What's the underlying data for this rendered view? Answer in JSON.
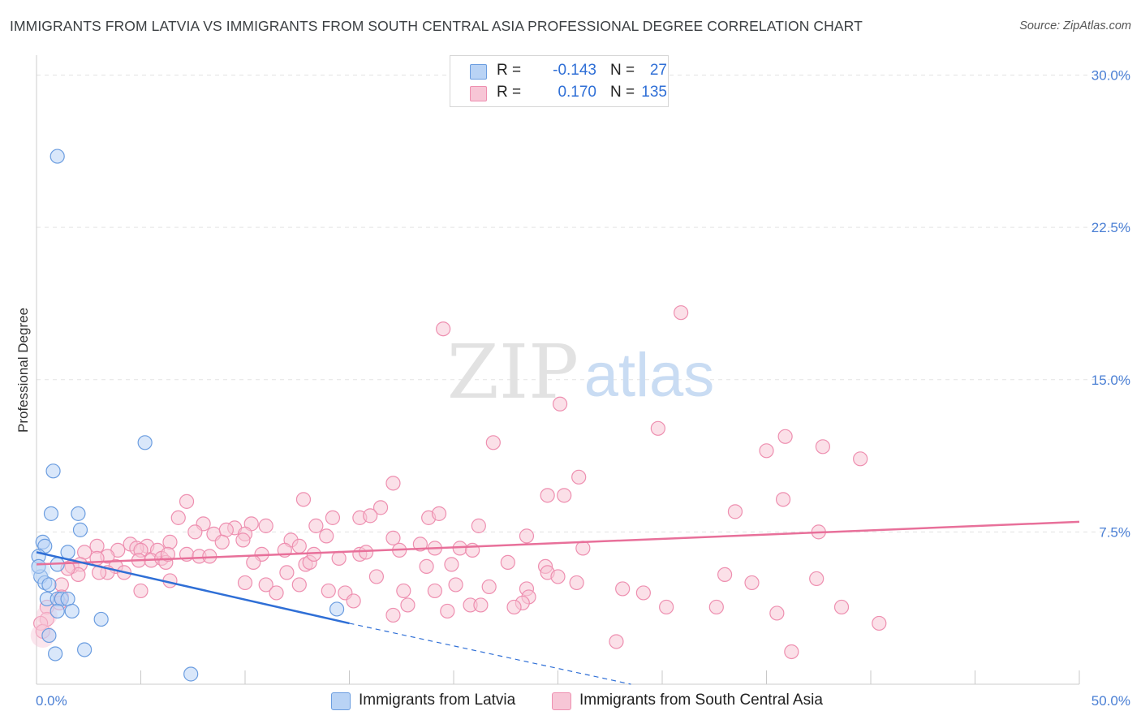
{
  "title": "IMMIGRANTS FROM LATVIA VS IMMIGRANTS FROM SOUTH CENTRAL ASIA PROFESSIONAL DEGREE CORRELATION CHART",
  "source": "Source: ZipAtlas.com",
  "watermark": {
    "zip": "ZIP",
    "atlas": "atlas"
  },
  "colors": {
    "latvia_fill": "#b9d3f5",
    "latvia_stroke": "#6b9de0",
    "latvia_line": "#2f6fd6",
    "sca_fill": "#f7c6d6",
    "sca_stroke": "#ee8fb0",
    "sca_line": "#e8709a",
    "tick_label": "#4a7fd4",
    "grid": "#e3e3e3"
  },
  "legend": {
    "rows": [
      {
        "r_label": "R =",
        "r_value": "-0.143",
        "n_label": "N =",
        "n_value": "27"
      },
      {
        "r_label": "R =",
        "r_value": "0.170",
        "n_label": "N =",
        "n_value": "135"
      }
    ]
  },
  "bottom_legend": [
    "Immigrants from Latvia",
    "Immigrants from South Central Asia"
  ],
  "chart_data": {
    "type": "scatter",
    "title": "IMMIGRANTS FROM LATVIA VS IMMIGRANTS FROM SOUTH CENTRAL ASIA PROFESSIONAL DEGREE CORRELATION CHART",
    "xlabel": "",
    "ylabel": "Professional Degree",
    "xlim": [
      0,
      50
    ],
    "ylim": [
      0,
      30.5
    ],
    "x_tick_labels": [
      "0.0%",
      "50.0%"
    ],
    "y_ticks": [
      7.5,
      15.0,
      22.5,
      30.0
    ],
    "y_tick_labels": [
      "7.5%",
      "15.0%",
      "22.5%",
      "30.0%"
    ],
    "grid": true,
    "series": [
      {
        "name": "Immigrants from Latvia",
        "R": -0.143,
        "N": 27,
        "points": [
          [
            1.0,
            26.0
          ],
          [
            5.2,
            11.9
          ],
          [
            0.8,
            10.5
          ],
          [
            0.7,
            8.4
          ],
          [
            2.0,
            8.4
          ],
          [
            2.1,
            7.6
          ],
          [
            0.3,
            7.0
          ],
          [
            0.4,
            6.8
          ],
          [
            1.5,
            6.5
          ],
          [
            1.0,
            5.9
          ],
          [
            0.2,
            5.3
          ],
          [
            0.4,
            5.0
          ],
          [
            0.6,
            4.9
          ],
          [
            0.5,
            4.2
          ],
          [
            1.0,
            4.2
          ],
          [
            1.2,
            4.2
          ],
          [
            1.5,
            4.2
          ],
          [
            1.0,
            3.6
          ],
          [
            1.7,
            3.6
          ],
          [
            3.1,
            3.2
          ],
          [
            0.6,
            2.4
          ],
          [
            2.3,
            1.7
          ],
          [
            0.9,
            1.5
          ],
          [
            7.4,
            0.5
          ],
          [
            14.4,
            3.7
          ],
          [
            0.1,
            6.3
          ],
          [
            0.1,
            5.8
          ]
        ],
        "trend": {
          "x": [
            0,
            15
          ],
          "y": [
            6.5,
            3.0
          ]
        },
        "trend_extension": {
          "x": [
            15,
            28.5
          ],
          "y": [
            3.0,
            0.0
          ]
        }
      },
      {
        "name": "Immigrants from South Central Asia",
        "R": 0.17,
        "N": 135,
        "points": [
          [
            30.9,
            18.3
          ],
          [
            19.5,
            17.5
          ],
          [
            25.1,
            13.8
          ],
          [
            29.8,
            12.6
          ],
          [
            35.9,
            12.2
          ],
          [
            21.9,
            11.9
          ],
          [
            35.0,
            11.5
          ],
          [
            37.7,
            11.7
          ],
          [
            39.5,
            11.1
          ],
          [
            26.0,
            10.2
          ],
          [
            17.1,
            9.9
          ],
          [
            7.2,
            9.0
          ],
          [
            12.8,
            9.1
          ],
          [
            24.5,
            9.3
          ],
          [
            25.3,
            9.3
          ],
          [
            35.8,
            9.1
          ],
          [
            33.5,
            8.5
          ],
          [
            6.8,
            8.2
          ],
          [
            16.5,
            8.7
          ],
          [
            15.5,
            8.2
          ],
          [
            16.0,
            8.3
          ],
          [
            14.2,
            8.2
          ],
          [
            18.8,
            8.2
          ],
          [
            19.3,
            8.4
          ],
          [
            8.0,
            7.9
          ],
          [
            9.5,
            7.7
          ],
          [
            11.0,
            7.8
          ],
          [
            10.3,
            7.9
          ],
          [
            13.4,
            7.8
          ],
          [
            21.2,
            7.8
          ],
          [
            7.6,
            7.5
          ],
          [
            8.5,
            7.4
          ],
          [
            9.1,
            7.6
          ],
          [
            10.0,
            7.4
          ],
          [
            13.9,
            7.3
          ],
          [
            17.1,
            7.2
          ],
          [
            23.5,
            7.3
          ],
          [
            37.5,
            7.5
          ],
          [
            2.9,
            6.8
          ],
          [
            4.5,
            6.9
          ],
          [
            5.3,
            6.8
          ],
          [
            6.4,
            7.0
          ],
          [
            8.9,
            7.0
          ],
          [
            9.9,
            7.1
          ],
          [
            12.2,
            7.1
          ],
          [
            12.6,
            6.8
          ],
          [
            3.9,
            6.6
          ],
          [
            4.8,
            6.7
          ],
          [
            5.0,
            6.6
          ],
          [
            5.8,
            6.6
          ],
          [
            7.2,
            6.4
          ],
          [
            7.8,
            6.3
          ],
          [
            8.3,
            6.3
          ],
          [
            10.8,
            6.4
          ],
          [
            11.9,
            6.6
          ],
          [
            15.5,
            6.4
          ],
          [
            15.8,
            6.5
          ],
          [
            17.4,
            6.6
          ],
          [
            19.1,
            6.7
          ],
          [
            20.3,
            6.7
          ],
          [
            20.9,
            6.6
          ],
          [
            26.2,
            6.7
          ],
          [
            2.3,
            6.5
          ],
          [
            3.4,
            6.3
          ],
          [
            4.9,
            6.1
          ],
          [
            5.5,
            6.1
          ],
          [
            6.0,
            6.2
          ],
          [
            6.2,
            6.0
          ],
          [
            10.4,
            6.0
          ],
          [
            12.9,
            5.9
          ],
          [
            13.1,
            6.0
          ],
          [
            22.6,
            6.0
          ],
          [
            1.7,
            5.8
          ],
          [
            2.1,
            5.9
          ],
          [
            3.8,
            5.8
          ],
          [
            18.7,
            5.8
          ],
          [
            19.9,
            5.9
          ],
          [
            24.4,
            5.8
          ],
          [
            2.0,
            5.4
          ],
          [
            3.4,
            5.5
          ],
          [
            4.2,
            5.5
          ],
          [
            12.0,
            5.5
          ],
          [
            16.3,
            5.3
          ],
          [
            24.5,
            5.5
          ],
          [
            25.0,
            5.3
          ],
          [
            33.0,
            5.4
          ],
          [
            1.2,
            4.9
          ],
          [
            6.4,
            5.1
          ],
          [
            10.0,
            5.0
          ],
          [
            11.0,
            4.9
          ],
          [
            12.6,
            4.9
          ],
          [
            25.9,
            5.0
          ],
          [
            34.3,
            5.0
          ],
          [
            37.4,
            5.2
          ],
          [
            20.1,
            4.9
          ],
          [
            21.7,
            4.8
          ],
          [
            23.5,
            4.7
          ],
          [
            28.1,
            4.7
          ],
          [
            29.1,
            4.5
          ],
          [
            5.0,
            4.6
          ],
          [
            11.5,
            4.5
          ],
          [
            14.0,
            4.6
          ],
          [
            14.8,
            4.5
          ],
          [
            17.6,
            4.6
          ],
          [
            19.1,
            4.6
          ],
          [
            1.2,
            4.3
          ],
          [
            23.6,
            4.3
          ],
          [
            15.2,
            4.1
          ],
          [
            23.3,
            4.0
          ],
          [
            0.5,
            3.8
          ],
          [
            1.1,
            4.0
          ],
          [
            17.8,
            3.9
          ],
          [
            20.8,
            3.9
          ],
          [
            21.3,
            3.9
          ],
          [
            22.9,
            3.8
          ],
          [
            30.2,
            3.8
          ],
          [
            32.6,
            3.8
          ],
          [
            38.6,
            3.8
          ],
          [
            19.7,
            3.6
          ],
          [
            35.5,
            3.5
          ],
          [
            17.1,
            3.4
          ],
          [
            0.5,
            3.2
          ],
          [
            0.2,
            3.0
          ],
          [
            40.4,
            3.0
          ],
          [
            0.3,
            2.6
          ],
          [
            27.8,
            2.1
          ],
          [
            36.2,
            1.6
          ],
          [
            2.9,
            6.2
          ],
          [
            1.5,
            5.7
          ],
          [
            3.0,
            5.5
          ],
          [
            6.3,
            6.4
          ],
          [
            13.3,
            6.4
          ],
          [
            14.5,
            6.2
          ],
          [
            18.4,
            6.9
          ]
        ],
        "trend": {
          "x": [
            0,
            50
          ],
          "y": [
            5.9,
            8.0
          ]
        }
      }
    ]
  }
}
